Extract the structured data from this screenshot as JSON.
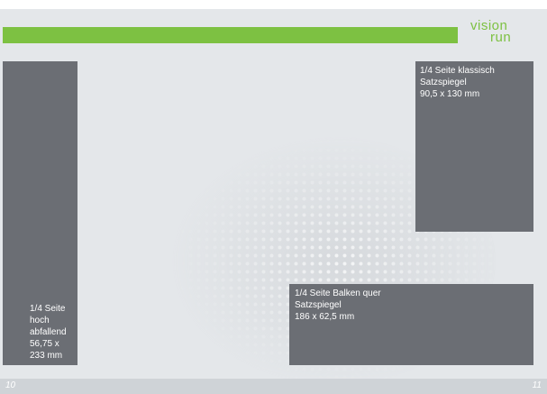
{
  "logo": {
    "line1": "vision",
    "line2": "run"
  },
  "boxes": [
    {
      "lines": [
        "1/4 Seite",
        "hoch",
        "abfallend",
        "56,75 x",
        "233 mm"
      ]
    },
    {
      "lines": [
        "1/4 Seite klassisch",
        "Satzspiegel",
        "90,5 x 130 mm"
      ]
    },
    {
      "lines": [
        "1/4 Seite Balken quer",
        "Satzspiegel",
        "186 x 62,5 mm"
      ]
    }
  ],
  "footer": {
    "left": "10",
    "right": "11"
  }
}
